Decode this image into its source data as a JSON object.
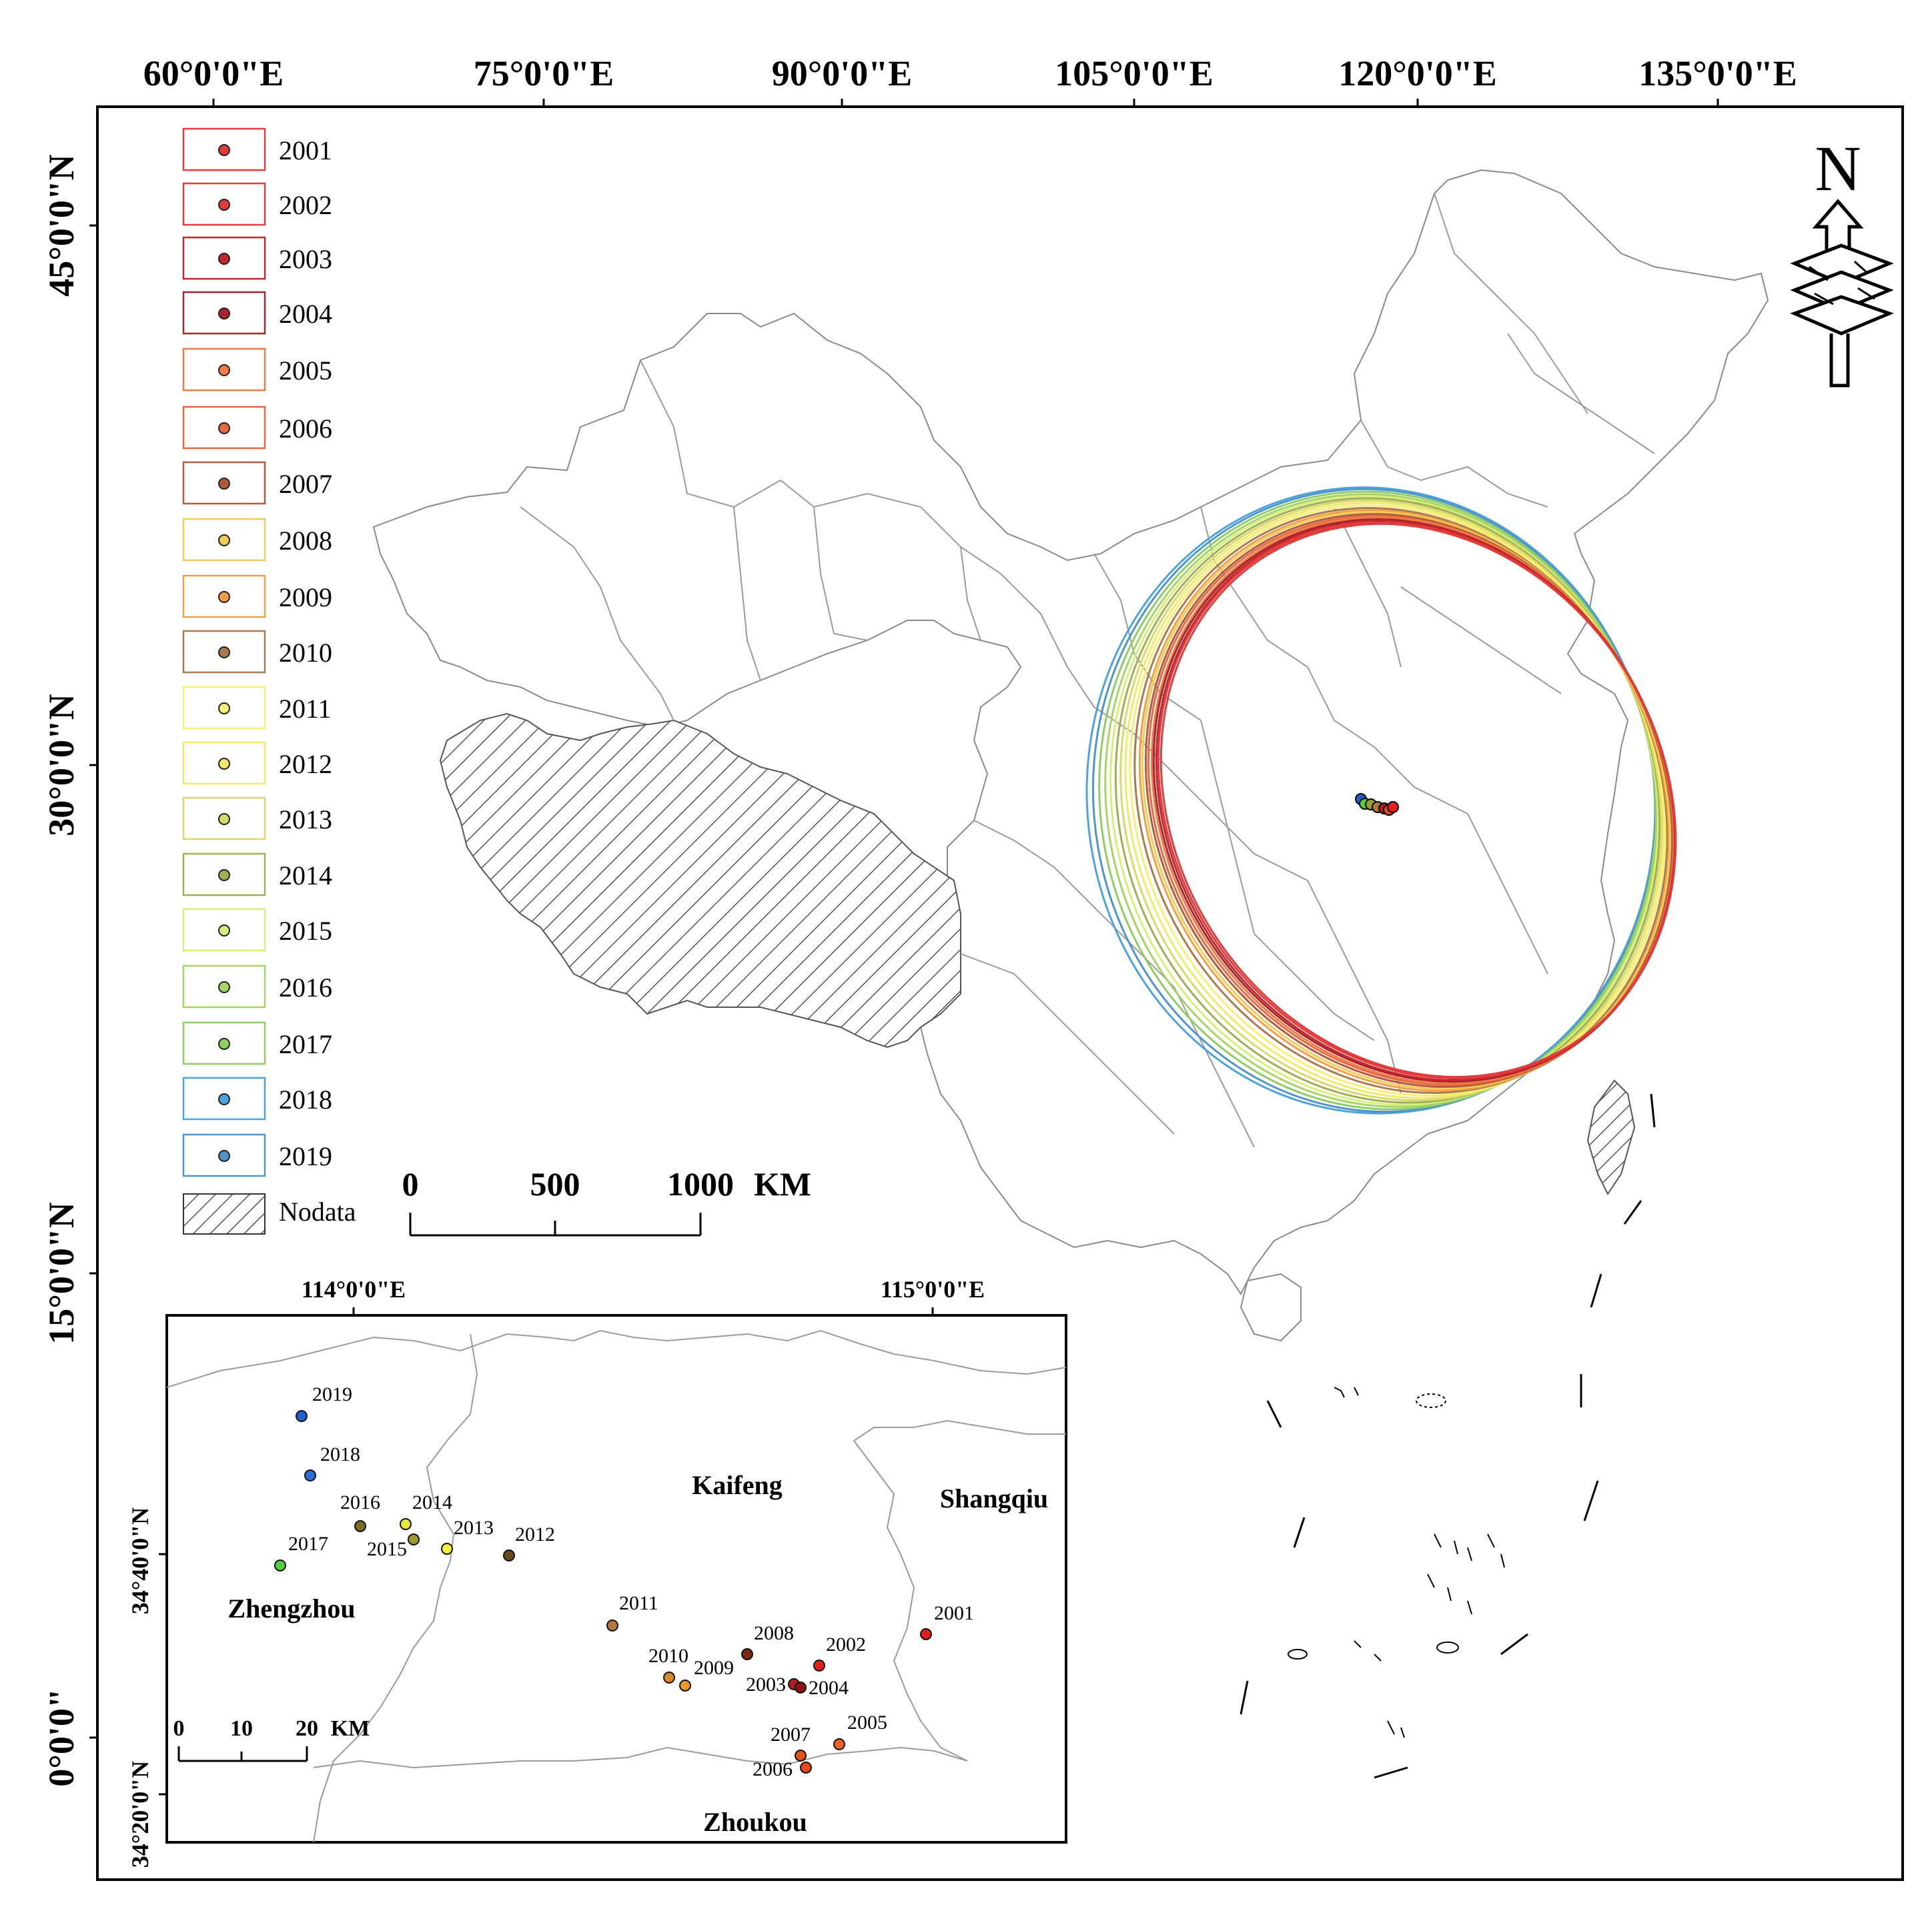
{
  "map": {
    "top_longitudes": [
      "60°0'0\"E",
      "75°0'0\"E",
      "90°0'0\"E",
      "105°0'0\"E",
      "120°0'0\"E",
      "135°0'0\"E"
    ],
    "left_latitudes": [
      "45°0'0\"N",
      "30°0'0\"N",
      "15°0'0\"N",
      "0°0'0\""
    ],
    "nodata_label": "Nodata",
    "scale": {
      "labels": [
        "0",
        "500",
        "1000"
      ],
      "unit": "KM"
    },
    "north_arrow_letter": "N"
  },
  "legend": {
    "years": [
      {
        "year": "2001",
        "color": "#e23b3b"
      },
      {
        "year": "2002",
        "color": "#e23b3b"
      },
      {
        "year": "2003",
        "color": "#c5262c"
      },
      {
        "year": "2004",
        "color": "#a8242c"
      },
      {
        "year": "2005",
        "color": "#f07c45"
      },
      {
        "year": "2006",
        "color": "#e9683f"
      },
      {
        "year": "2007",
        "color": "#b25b3c"
      },
      {
        "year": "2008",
        "color": "#f2cc58"
      },
      {
        "year": "2009",
        "color": "#f2a048"
      },
      {
        "year": "2010",
        "color": "#a9794f"
      },
      {
        "year": "2011",
        "color": "#f6ef76"
      },
      {
        "year": "2012",
        "color": "#f0e96b"
      },
      {
        "year": "2013",
        "color": "#d9d96a"
      },
      {
        "year": "2014",
        "color": "#a2ad58"
      },
      {
        "year": "2015",
        "color": "#d6ef7a"
      },
      {
        "year": "2016",
        "color": "#a6d565"
      },
      {
        "year": "2017",
        "color": "#8fcc63"
      },
      {
        "year": "2018",
        "color": "#4fa3db"
      },
      {
        "year": "2019",
        "color": "#4f95c9"
      }
    ]
  },
  "inset": {
    "top_longitudes": [
      "114°0'0\"E",
      "115°0'0\"E"
    ],
    "left_latitudes": [
      "34°40'0\"N",
      "34°20'0\"N"
    ],
    "cities": [
      "Kaifeng",
      "Shangqiu",
      "Zhengzhou",
      "Zhoukou"
    ],
    "scale": {
      "labels": [
        "0",
        "10",
        "20"
      ],
      "unit": "KM"
    },
    "points": [
      {
        "year": "2019",
        "fill": "#1f5fc9"
      },
      {
        "year": "2018",
        "fill": "#2a6fd6"
      },
      {
        "year": "2016",
        "fill": "#7a6a24"
      },
      {
        "year": "2014",
        "fill": "#e9e83a"
      },
      {
        "year": "2015",
        "fill": "#9a9a2e"
      },
      {
        "year": "2013",
        "fill": "#f5f03c"
      },
      {
        "year": "2012",
        "fill": "#6b4a1f"
      },
      {
        "year": "2017",
        "fill": "#4fd23a"
      },
      {
        "year": "2011",
        "fill": "#b0763a"
      },
      {
        "year": "2001",
        "fill": "#e01e1e"
      },
      {
        "year": "2008",
        "fill": "#7a2a14"
      },
      {
        "year": "2002",
        "fill": "#e22020"
      },
      {
        "year": "2010",
        "fill": "#d4892c"
      },
      {
        "year": "2009",
        "fill": "#e39a2a"
      },
      {
        "year": "2003",
        "fill": "#b21c1c"
      },
      {
        "year": "2004",
        "fill": "#8a1414"
      },
      {
        "year": "2007",
        "fill": "#e0521c"
      },
      {
        "year": "2005",
        "fill": "#f0602a"
      },
      {
        "year": "2006",
        "fill": "#e64a1a"
      }
    ]
  }
}
